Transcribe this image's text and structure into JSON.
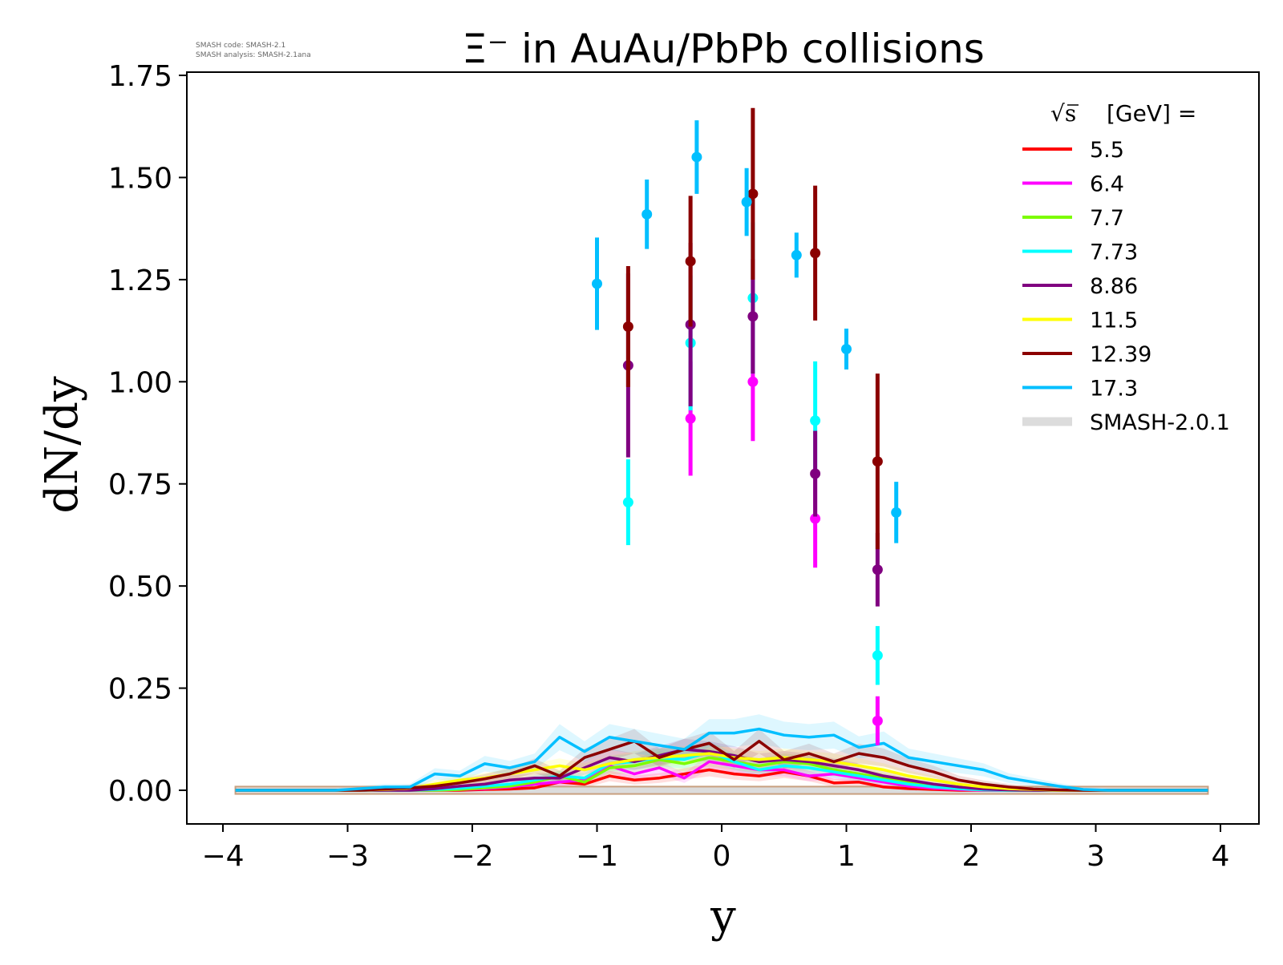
{
  "chart_data": {
    "type": "line",
    "title": "Ξ⁻ in AuAu/PbPb collisions",
    "xlabel": "y",
    "ylabel": "dN/dy",
    "xlim": [
      -4.3,
      4.3
    ],
    "ylim": [
      -0.08,
      1.75
    ],
    "xticks": [
      -4,
      -3,
      -2,
      -1,
      0,
      1,
      2,
      3,
      4
    ],
    "xtick_labels": [
      "−4",
      "−3",
      "−2",
      "−1",
      "0",
      "1",
      "2",
      "3",
      "4"
    ],
    "yticks": [
      0,
      0.25,
      0.5,
      0.75,
      1.0,
      1.25,
      1.5,
      1.75
    ],
    "ytick_labels": [
      "0.00",
      "0.25",
      "0.50",
      "0.75",
      "1.00",
      "1.25",
      "1.50",
      "1.75"
    ],
    "grid": false,
    "legend_position": "top-right",
    "legend_title": "[GeV] =",
    "legend_title_prefix": "√s",
    "version_note": [
      "SMASH code:      SMASH-2.1",
      "SMASH analysis: SMASH-2.1ana"
    ],
    "band_label": "SMASH-2.0.1",
    "band_color": "#dcdcdc",
    "series": [
      {
        "name": "5.5",
        "color": "#ff0000",
        "x": [
          -3.9,
          -3.7,
          -3.5,
          -3.3,
          -3.1,
          -2.9,
          -2.7,
          -2.5,
          -2.3,
          -2.1,
          -1.9,
          -1.7,
          -1.5,
          -1.3,
          -1.1,
          -0.9,
          -0.7,
          -0.5,
          -0.3,
          -0.1,
          0.1,
          0.3,
          0.5,
          0.7,
          0.9,
          1.1,
          1.3,
          1.5,
          1.7,
          1.9,
          2.1,
          2.3,
          2.5,
          2.7,
          2.9,
          3.1,
          3.3,
          3.5,
          3.7,
          3.9
        ],
        "y": [
          0,
          0,
          0,
          0,
          0,
          0,
          0,
          0,
          0,
          0,
          0.002,
          0.003,
          0.006,
          0.02,
          0.015,
          0.035,
          0.025,
          0.03,
          0.04,
          0.05,
          0.04,
          0.035,
          0.045,
          0.035,
          0.018,
          0.02,
          0.008,
          0.004,
          0.002,
          0,
          0,
          0,
          0,
          0,
          0,
          0,
          0,
          0,
          0,
          0
        ],
        "points": []
      },
      {
        "name": "6.4",
        "color": "#ff00ff",
        "x": [
          -3.9,
          -3.7,
          -3.5,
          -3.3,
          -3.1,
          -2.9,
          -2.7,
          -2.5,
          -2.3,
          -2.1,
          -1.9,
          -1.7,
          -1.5,
          -1.3,
          -1.1,
          -0.9,
          -0.7,
          -0.5,
          -0.3,
          -0.1,
          0.1,
          0.3,
          0.5,
          0.7,
          0.9,
          1.1,
          1.3,
          1.5,
          1.7,
          1.9,
          2.1,
          2.3,
          2.5,
          2.7,
          2.9,
          3.1,
          3.3,
          3.5,
          3.7,
          3.9
        ],
        "y": [
          0,
          0,
          0,
          0,
          0,
          0,
          0,
          0,
          0,
          0.002,
          0.004,
          0.008,
          0.015,
          0.02,
          0.025,
          0.06,
          0.04,
          0.055,
          0.03,
          0.07,
          0.06,
          0.05,
          0.05,
          0.035,
          0.04,
          0.03,
          0.02,
          0.01,
          0.005,
          0.002,
          0,
          0,
          0,
          0,
          0,
          0,
          0,
          0,
          0,
          0
        ],
        "points": [
          {
            "x": -0.25,
            "y": 0.91,
            "err": 0.14
          },
          {
            "x": 0.25,
            "y": 1.0,
            "err": 0.145
          },
          {
            "x": 0.75,
            "y": 0.665,
            "err": 0.12
          },
          {
            "x": 1.25,
            "y": 0.17,
            "err": 0.06
          }
        ]
      },
      {
        "name": "7.7",
        "color": "#7cfc00",
        "x": [
          -3.9,
          -3.7,
          -3.5,
          -3.3,
          -3.1,
          -2.9,
          -2.7,
          -2.5,
          -2.3,
          -2.1,
          -1.9,
          -1.7,
          -1.5,
          -1.3,
          -1.1,
          -0.9,
          -0.7,
          -0.5,
          -0.3,
          -0.1,
          0.1,
          0.3,
          0.5,
          0.7,
          0.9,
          1.1,
          1.3,
          1.5,
          1.7,
          1.9,
          2.1,
          2.3,
          2.5,
          2.7,
          2.9,
          3.1,
          3.3,
          3.5,
          3.7,
          3.9
        ],
        "y": [
          0,
          0,
          0,
          0,
          0,
          0,
          0,
          0,
          0,
          0.002,
          0.006,
          0.01,
          0.02,
          0.035,
          0.02,
          0.055,
          0.06,
          0.075,
          0.065,
          0.08,
          0.07,
          0.06,
          0.07,
          0.065,
          0.05,
          0.04,
          0.03,
          0.02,
          0.01,
          0.004,
          0.001,
          0,
          0,
          0,
          0,
          0,
          0,
          0,
          0,
          0
        ],
        "points": []
      },
      {
        "name": "7.73",
        "color": "#00ffff",
        "x": [
          -3.9,
          -3.7,
          -3.5,
          -3.3,
          -3.1,
          -2.9,
          -2.7,
          -2.5,
          -2.3,
          -2.1,
          -1.9,
          -1.7,
          -1.5,
          -1.3,
          -1.1,
          -0.9,
          -0.7,
          -0.5,
          -0.3,
          -0.1,
          0.1,
          0.3,
          0.5,
          0.7,
          0.9,
          1.1,
          1.3,
          1.5,
          1.7,
          1.9,
          2.1,
          2.3,
          2.5,
          2.7,
          2.9,
          3.1,
          3.3,
          3.5,
          3.7,
          3.9
        ],
        "y": [
          0,
          0,
          0,
          0,
          0,
          0,
          0,
          0,
          0.002,
          0.005,
          0.01,
          0.015,
          0.025,
          0.035,
          0.03,
          0.065,
          0.07,
          0.08,
          0.075,
          0.095,
          0.07,
          0.05,
          0.06,
          0.055,
          0.045,
          0.035,
          0.025,
          0.015,
          0.008,
          0.004,
          0.001,
          0,
          0,
          0,
          0,
          0,
          0,
          0,
          0,
          0
        ],
        "points": [
          {
            "x": -0.75,
            "y": 0.705,
            "err": 0.105
          },
          {
            "x": -0.25,
            "y": 1.095,
            "err": 0.165
          },
          {
            "x": 0.25,
            "y": 1.205,
            "err": 0.185
          },
          {
            "x": 0.75,
            "y": 0.905,
            "err": 0.145
          },
          {
            "x": 1.25,
            "y": 0.33,
            "err": 0.072
          }
        ]
      },
      {
        "name": "8.86",
        "color": "#800080",
        "x": [
          -3.9,
          -3.7,
          -3.5,
          -3.3,
          -3.1,
          -2.9,
          -2.7,
          -2.5,
          -2.3,
          -2.1,
          -1.9,
          -1.7,
          -1.5,
          -1.3,
          -1.1,
          -0.9,
          -0.7,
          -0.5,
          -0.3,
          -0.1,
          0.1,
          0.3,
          0.5,
          0.7,
          0.9,
          1.1,
          1.3,
          1.5,
          1.7,
          1.9,
          2.1,
          2.3,
          2.5,
          2.7,
          2.9,
          3.1,
          3.3,
          3.5,
          3.7,
          3.9
        ],
        "y": [
          0,
          0,
          0,
          0,
          0,
          0,
          0,
          0,
          0.004,
          0.01,
          0.015,
          0.025,
          0.03,
          0.03,
          0.055,
          0.08,
          0.07,
          0.085,
          0.1,
          0.095,
          0.085,
          0.07,
          0.075,
          0.07,
          0.06,
          0.05,
          0.035,
          0.025,
          0.015,
          0.008,
          0.003,
          0.001,
          0,
          0,
          0,
          0,
          0,
          0,
          0,
          0
        ],
        "points": [
          {
            "x": -0.75,
            "y": 1.04,
            "err": 0.225
          },
          {
            "x": -0.25,
            "y": 1.14,
            "err": 0.2
          },
          {
            "x": 0.25,
            "y": 1.16,
            "err": 0.14
          },
          {
            "x": 0.75,
            "y": 0.775,
            "err": 0.105
          },
          {
            "x": 1.25,
            "y": 0.54,
            "err": 0.09
          }
        ]
      },
      {
        "name": "11.5",
        "color": "#ffff00",
        "x": [
          -3.9,
          -3.7,
          -3.5,
          -3.3,
          -3.1,
          -2.9,
          -2.7,
          -2.5,
          -2.3,
          -2.1,
          -1.9,
          -1.7,
          -1.5,
          -1.3,
          -1.1,
          -0.9,
          -0.7,
          -0.5,
          -0.3,
          -0.1,
          0.1,
          0.3,
          0.5,
          0.7,
          0.9,
          1.1,
          1.3,
          1.5,
          1.7,
          1.9,
          2.1,
          2.3,
          2.5,
          2.7,
          2.9,
          3.1,
          3.3,
          3.5,
          3.7,
          3.9
        ],
        "y": [
          0,
          0,
          0,
          0,
          0,
          0,
          0.002,
          0.005,
          0.015,
          0.025,
          0.03,
          0.04,
          0.05,
          0.06,
          0.05,
          0.065,
          0.075,
          0.08,
          0.085,
          0.09,
          0.08,
          0.075,
          0.08,
          0.075,
          0.07,
          0.06,
          0.05,
          0.035,
          0.025,
          0.015,
          0.008,
          0.004,
          0.002,
          0,
          0,
          0,
          0,
          0,
          0,
          0
        ],
        "points": []
      },
      {
        "name": "12.39",
        "color": "#8b0000",
        "x": [
          -3.9,
          -3.7,
          -3.5,
          -3.3,
          -3.1,
          -2.9,
          -2.7,
          -2.5,
          -2.3,
          -2.1,
          -1.9,
          -1.7,
          -1.5,
          -1.3,
          -1.1,
          -0.9,
          -0.7,
          -0.5,
          -0.3,
          -0.1,
          0.1,
          0.3,
          0.5,
          0.7,
          0.9,
          1.1,
          1.3,
          1.5,
          1.7,
          1.9,
          2.1,
          2.3,
          2.5,
          2.7,
          2.9,
          3.1,
          3.3,
          3.5,
          3.7,
          3.9
        ],
        "y": [
          0,
          0,
          0,
          0,
          0,
          0,
          0.003,
          0.006,
          0.01,
          0.018,
          0.028,
          0.04,
          0.06,
          0.035,
          0.08,
          0.1,
          0.12,
          0.08,
          0.1,
          0.115,
          0.075,
          0.12,
          0.075,
          0.09,
          0.07,
          0.09,
          0.08,
          0.06,
          0.045,
          0.025,
          0.015,
          0.008,
          0.003,
          0.001,
          0,
          0,
          0,
          0,
          0,
          0
        ],
        "points": [
          {
            "x": -0.75,
            "y": 1.135,
            "err": 0.148
          },
          {
            "x": -0.25,
            "y": 1.295,
            "err": 0.16
          },
          {
            "x": 0.25,
            "y": 1.46,
            "err": 0.21
          },
          {
            "x": 0.75,
            "y": 1.315,
            "err": 0.165
          },
          {
            "x": 1.25,
            "y": 0.805,
            "err": 0.215
          }
        ]
      },
      {
        "name": "17.3",
        "color": "#00bfff",
        "x": [
          -3.9,
          -3.7,
          -3.5,
          -3.3,
          -3.1,
          -2.9,
          -2.7,
          -2.5,
          -2.3,
          -2.1,
          -1.9,
          -1.7,
          -1.5,
          -1.3,
          -1.1,
          -0.9,
          -0.7,
          -0.5,
          -0.3,
          -0.1,
          0.1,
          0.3,
          0.5,
          0.7,
          0.9,
          1.1,
          1.3,
          1.5,
          1.7,
          1.9,
          2.1,
          2.3,
          2.5,
          2.7,
          2.9,
          3.1,
          3.3,
          3.5,
          3.7,
          3.9
        ],
        "y": [
          0,
          0,
          0,
          0,
          0,
          0.004,
          0.008,
          0.008,
          0.04,
          0.035,
          0.065,
          0.055,
          0.07,
          0.13,
          0.095,
          0.13,
          0.12,
          0.11,
          0.1,
          0.14,
          0.14,
          0.15,
          0.135,
          0.13,
          0.135,
          0.105,
          0.115,
          0.08,
          0.07,
          0.06,
          0.05,
          0.03,
          0.02,
          0.01,
          0.002,
          0,
          0,
          0,
          0,
          0
        ],
        "points": [
          {
            "x": -1.0,
            "y": 1.24,
            "err": 0.113
          },
          {
            "x": -0.6,
            "y": 1.41,
            "err": 0.085
          },
          {
            "x": -0.2,
            "y": 1.55,
            "err": 0.09
          },
          {
            "x": 0.2,
            "y": 1.44,
            "err": 0.083
          },
          {
            "x": 0.6,
            "y": 1.31,
            "err": 0.055
          },
          {
            "x": 1.0,
            "y": 1.08,
            "err": 0.05
          },
          {
            "x": 1.4,
            "y": 0.68,
            "err": 0.075
          }
        ]
      }
    ]
  }
}
